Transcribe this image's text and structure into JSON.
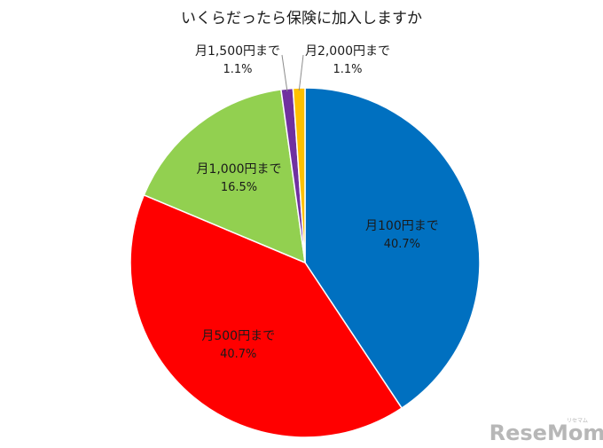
{
  "chart_data": {
    "type": "pie",
    "title": "いくらだったら保険に加入しますか",
    "slices": [
      {
        "label": "月100円まで",
        "value": 40.7,
        "value_label": "40.7%",
        "color": "#0070c0"
      },
      {
        "label": "月500円まで",
        "value": 40.7,
        "value_label": "40.7%",
        "color": "#ff0000"
      },
      {
        "label": "月1,000円まで",
        "value": 16.5,
        "value_label": "16.5%",
        "color": "#92d050"
      },
      {
        "label": "月1,500円まで",
        "value": 1.1,
        "value_label": "1.1%",
        "color": "#7030a0"
      },
      {
        "label": "月2,000円まで",
        "value": 1.1,
        "value_label": "1.1%",
        "color": "#ffc000"
      }
    ]
  },
  "watermark": {
    "text": "ReseMom",
    "kana": "リセマム"
  }
}
